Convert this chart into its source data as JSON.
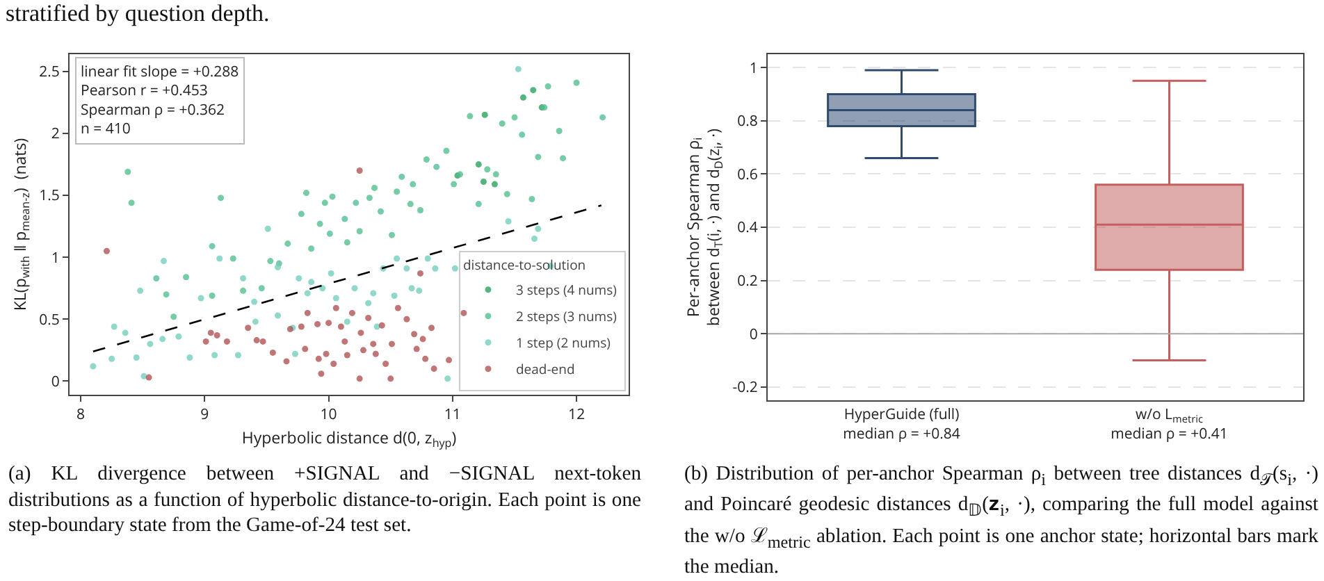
{
  "chart_data": [
    {
      "type": "scatter",
      "xlabel": "Hyperbolic distance d(0, z$_{hyp}$)",
      "ylabel": "KL(p$_{with}$ ‖ p$_{mean-z}$)  (nats)",
      "legend_title": "distance-to-solution",
      "legend": "bottom right",
      "marker": "circle",
      "grid": false,
      "xlim": [
        7.91,
        12.42
      ],
      "xticks": [
        8,
        9,
        10,
        11,
        12
      ],
      "ylim": [
        -0.11,
        2.64
      ],
      "yticks": [
        0.0,
        0.5,
        1.0,
        1.5,
        2.0,
        2.5
      ],
      "annotations": [
        "stratified by question depth.",
        "linear fit slope = +0.288\nPearson r = +0.453\nSpearman ρ = +0.362\nn = 410",
        "(a) KL divergence between +SIGNAL and −SIGNAL next-token distributions as a function of hyperbolic distance-to-origin. Each point is one step-boundary state from the Game-of-24 test set."
      ],
      "series": [
        {
          "name": "3 steps (4 nums)",
          "color": "#2ca25f",
          "x": [
            11.21,
            11.26,
            11.65,
            11.72,
            11.57,
            11.04,
            11.34,
            11.25
          ],
          "values": [
            1.75,
            2.15,
            2.35,
            2.21,
            2.29,
            1.66,
            1.59,
            1.61
          ]
        },
        {
          "name": "2 steps (3 nums)",
          "color": "#52bf90",
          "x": [
            8.38,
            8.41,
            8.61,
            8.69,
            8.75,
            8.85,
            9.06,
            9.13,
            9.06,
            9.23,
            9.31,
            9.46,
            9.53,
            9.6,
            9.67,
            9.78,
            9.82,
            9.86,
            9.93,
            9.97,
            10.01,
            10.03,
            10.13,
            10.15,
            10.22,
            10.25,
            10.33,
            10.37,
            10.42,
            10.51,
            10.55,
            10.59,
            10.66,
            10.68,
            10.74,
            10.79,
            10.87,
            10.95,
            11.01,
            11.06,
            11.14,
            11.21,
            11.28,
            11.35,
            11.4,
            11.44,
            11.5,
            11.56,
            11.64,
            11.69,
            11.74,
            11.86,
            11.89,
            12.0,
            12.21,
            11.77
          ],
          "values": [
            1.69,
            1.44,
            0.83,
            0.7,
            0.52,
            0.84,
            0.69,
            1.48,
            1.09,
            0.99,
            0.73,
            0.75,
            0.97,
            0.95,
            1.11,
            1.35,
            1.52,
            1.07,
            1.27,
            1.44,
            1.19,
            1.49,
            1.31,
            1.12,
            1.44,
            1.21,
            1.48,
            1.56,
            1.37,
            1.18,
            1.53,
            1.65,
            1.43,
            1.59,
            1.38,
            1.79,
            1.73,
            1.86,
            1.59,
            1.67,
            2.14,
            1.43,
            1.71,
            1.67,
            2.08,
            1.51,
            2.13,
            1.99,
            1.47,
            1.81,
            2.21,
            2.02,
            1.8,
            2.41,
            2.13,
            2.38
          ]
        },
        {
          "name": "1 step (2 nums)",
          "color": "#74d0bd",
          "x": [
            8.1,
            8.25,
            8.27,
            8.36,
            8.45,
            8.48,
            8.51,
            8.56,
            8.67,
            8.66,
            8.79,
            8.88,
            8.97,
            9.08,
            9.12,
            9.27,
            9.31,
            9.41,
            9.4,
            9.51,
            9.59,
            9.59,
            9.71,
            9.73,
            9.76,
            9.83,
            9.86,
            9.95,
            10.02,
            10.06,
            10.15,
            10.21,
            10.32,
            10.36,
            10.39,
            10.44,
            10.53,
            10.55,
            10.63,
            10.67,
            10.73,
            10.8,
            10.86,
            10.96,
            11.02,
            11.45,
            11.53,
            11.66,
            11.69,
            11.79
          ],
          "values": [
            0.12,
            0.18,
            0.44,
            0.39,
            0.19,
            0.73,
            0.04,
            0.3,
            0.97,
            0.34,
            0.36,
            0.19,
            0.67,
            0.21,
            0.99,
            0.21,
            0.83,
            0.48,
            0.64,
            1.23,
            0.92,
            0.53,
            0.43,
            0.22,
            0.83,
            0.71,
            0.8,
            0.75,
            0.87,
            0.67,
            0.48,
            0.75,
            0.63,
            0.71,
            0.44,
            0.91,
            0.69,
            0.99,
            0.91,
            0.75,
            0.73,
            0.99,
            0.91,
            0.02,
            0.91,
            1.29,
            2.52,
            1.15,
            1.23,
            0.93
          ]
        },
        {
          "name": "dead-end",
          "color": "#b05454",
          "x": [
            8.21,
            8.55,
            9.01,
            9.05,
            9.1,
            9.18,
            9.35,
            9.42,
            9.47,
            9.55,
            9.66,
            9.69,
            9.78,
            9.83,
            9.81,
            9.91,
            9.92,
            9.94,
            10.0,
            9.98,
            10.04,
            10.06,
            10.1,
            10.13,
            10.15,
            10.19,
            10.25,
            10.25,
            10.26,
            10.28,
            10.32,
            10.36,
            10.38,
            10.43,
            10.46,
            10.5,
            10.51,
            10.56,
            10.63,
            10.69,
            10.71,
            10.74,
            10.76,
            10.78,
            10.83,
            10.85,
            10.97,
            11.09
          ],
          "values": [
            1.05,
            0.03,
            0.32,
            0.39,
            0.37,
            0.32,
            0.43,
            0.33,
            0.32,
            0.23,
            0.16,
            0.42,
            0.44,
            0.55,
            0.26,
            0.46,
            0.18,
            0.06,
            0.47,
            0.22,
            0.14,
            0.59,
            0.44,
            0.32,
            0.21,
            0.55,
            0.02,
            1.7,
            0.39,
            0.25,
            0.51,
            0.3,
            0.22,
            0.45,
            0.14,
            0.02,
            0.3,
            0.59,
            0.5,
            0.38,
            0.26,
            0.87,
            0.34,
            0.18,
            0.43,
            0.1,
            0.17,
            0.55
          ]
        },
        {
          "type": "line",
          "color": "#000000",
          "line_style": "dashed",
          "marker": "none",
          "x": [
            8.1,
            12.2
          ],
          "values": [
            0.24,
            1.42
          ]
        }
      ]
    },
    {
      "type": "box",
      "ylabel": "Per-anchor Spearman ρ$_{i}$\nbetween d$_{T}$(i, ·) and d$_{D}$(z$_{i}$, ·)",
      "categories": [
        "HyperGuide (full)\nmedian ρ = +0.84",
        "w/o L$_{metric}$\nmedian ρ = +0.41"
      ],
      "colors": [
        "#2f4b70",
        "#c35f5f"
      ],
      "grid": "y",
      "ylim": [
        -0.25,
        1.05
      ],
      "yticks": [
        -0.2,
        0.0,
        0.2,
        0.4,
        0.6,
        0.8,
        1.0
      ],
      "boxes": [
        {
          "low": 0.66,
          "q1": 0.78,
          "median": 0.84,
          "q3": 0.9,
          "high": 0.99
        },
        {
          "low": -0.1,
          "q1": 0.24,
          "median": 0.41,
          "q3": 0.56,
          "high": 0.95
        }
      ],
      "ref_lines": [
        {
          "axis": "y",
          "value": 0,
          "color": "#aaaaaa"
        }
      ],
      "annotations": [
        "(b) Distribution of per-anchor Spearman ρ$_{i}$ between tree distances d$_{𝒯}$(s$_{i}$, ·) and Poincaré geodesic distances d$_{𝔻}$(𝐳$_{i}$, ·), comparing the full model against the w/o ℒ$_{metric}$ ablation. Each point is one anchor state; horizontal bars mark the median."
      ]
    }
  ]
}
